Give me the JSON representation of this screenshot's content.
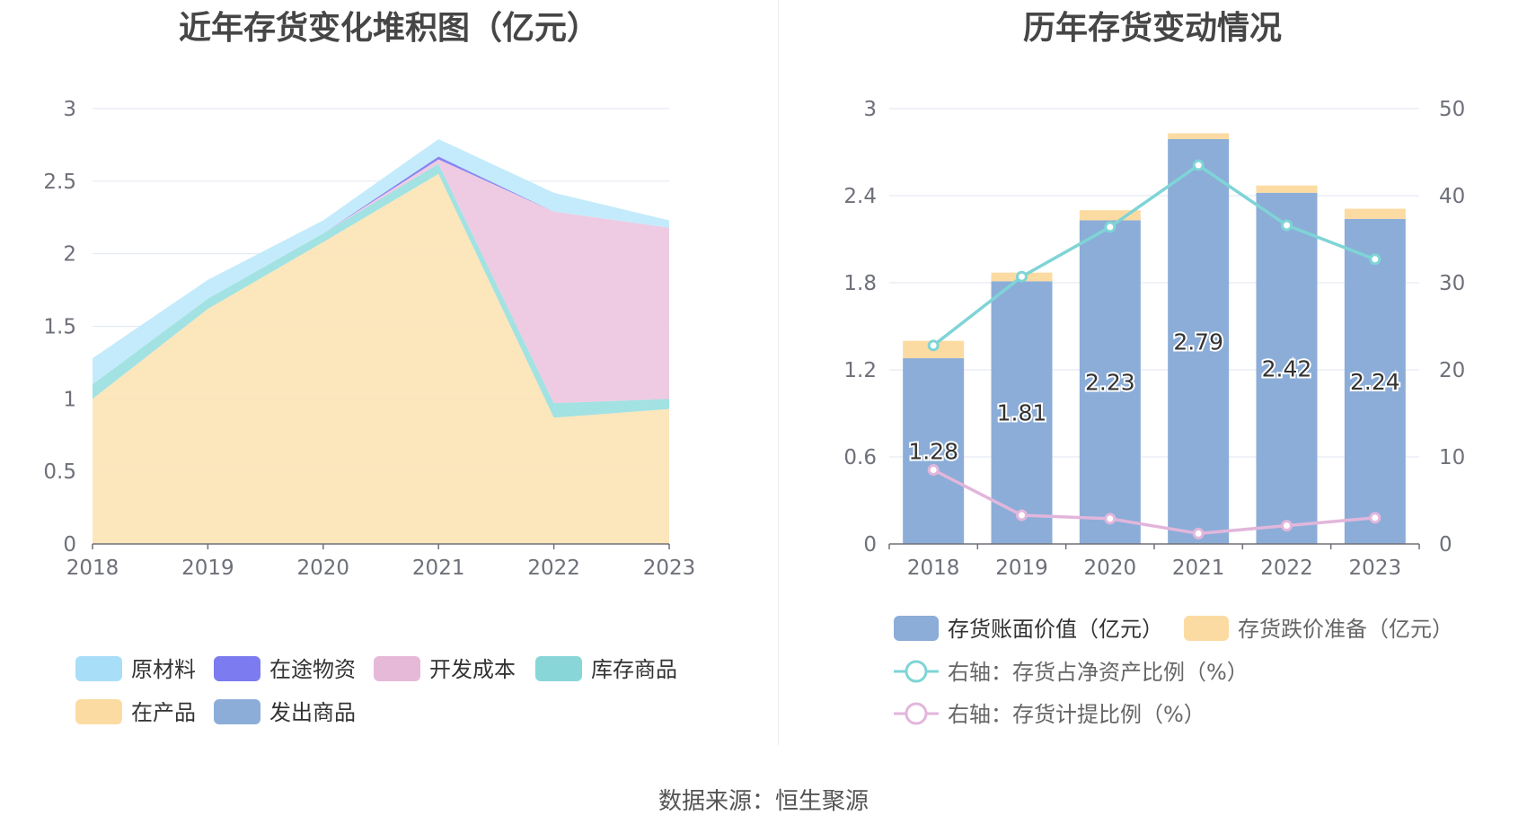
{
  "source_text": "数据来源：恒生聚源",
  "chart_data": [
    {
      "type": "area",
      "stacked": true,
      "title": "近年存货变化堆积图（亿元）",
      "categories": [
        "2018",
        "2019",
        "2020",
        "2021",
        "2022",
        "2023"
      ],
      "ylim": [
        0,
        3
      ],
      "yticks": [
        "0",
        "0.5",
        "1",
        "1.5",
        "2",
        "2.5",
        "3"
      ],
      "series": [
        {
          "name": "在产品",
          "color": "#fce4b6",
          "values": [
            1.0,
            1.62,
            2.08,
            2.55,
            0.87,
            0.93
          ]
        },
        {
          "name": "库存商品",
          "color": "#9ae0e0",
          "values": [
            0.1,
            0.07,
            0.06,
            0.07,
            0.1,
            0.07
          ]
        },
        {
          "name": "开发成本",
          "color": "#edc7e0",
          "values": [
            0.0,
            0.0,
            0.0,
            0.03,
            1.32,
            1.18
          ]
        },
        {
          "name": "在途物资",
          "color": "#7c7cf0",
          "values": [
            0.0,
            0.0,
            0.0,
            0.02,
            0.0,
            0.0
          ]
        },
        {
          "name": "发出商品",
          "color": "#8badd8",
          "values": [
            0.0,
            0.0,
            0.0,
            0.0,
            0.0,
            0.0
          ]
        },
        {
          "name": "原材料",
          "color": "#bfe9fb",
          "values": [
            0.18,
            0.13,
            0.09,
            0.12,
            0.13,
            0.05
          ]
        }
      ],
      "legend": [
        {
          "name": "原材料",
          "color": "#a9def8"
        },
        {
          "name": "在途物资",
          "color": "#7c7cf0"
        },
        {
          "name": "开发成本",
          "color": "#e6b9d8"
        },
        {
          "name": "库存商品",
          "color": "#88d6d8"
        },
        {
          "name": "在产品",
          "color": "#fcdba2"
        },
        {
          "name": "发出商品",
          "color": "#8badd8"
        }
      ]
    },
    {
      "type": "bar",
      "stacked": true,
      "title": "历年存货变动情况",
      "categories": [
        "2018",
        "2019",
        "2020",
        "2021",
        "2022",
        "2023"
      ],
      "ylim": [
        0,
        3
      ],
      "yticks": [
        "0",
        "0.6",
        "1.2",
        "1.8",
        "2.4",
        "3"
      ],
      "y2lim": [
        0,
        50
      ],
      "y2ticks": [
        "0",
        "10",
        "20",
        "30",
        "40",
        "50"
      ],
      "series": [
        {
          "name": "存货账面价值（亿元）",
          "color": "#8badd8",
          "values": [
            1.28,
            1.81,
            2.23,
            2.79,
            2.42,
            2.24
          ],
          "labels": [
            "1.28",
            "1.81",
            "2.23",
            "2.79",
            "2.42",
            "2.24"
          ]
        },
        {
          "name": "存货跌价准备（亿元）",
          "color": "#fcdba2",
          "values": [
            0.12,
            0.06,
            0.07,
            0.04,
            0.05,
            0.07
          ]
        },
        {
          "name": "右轴：存货占净资产比例（%）",
          "type": "line",
          "axis": "right",
          "color": "#7fd4d6",
          "values": [
            22.8,
            30.7,
            36.4,
            43.5,
            36.6,
            32.7
          ]
        },
        {
          "name": "右轴：存货计提比例（%）",
          "type": "line",
          "axis": "right",
          "color": "#e2b6dc",
          "values": [
            8.5,
            3.3,
            2.9,
            1.2,
            2.1,
            3.0
          ]
        }
      ]
    }
  ]
}
